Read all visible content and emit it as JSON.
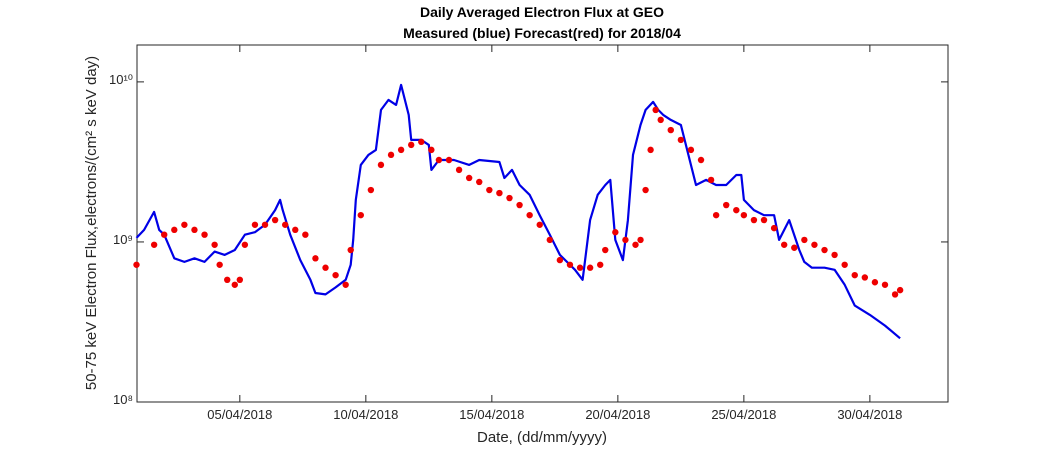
{
  "chart_data": {
    "type": "line",
    "title": "Daily Averaged Electron Flux at GEO",
    "subtitle": "Measured (blue) Forecast(red) for 2018/04",
    "x_label": "Date, (dd/mm/yyyy)",
    "y_label": "50-75 keV Electron Flux,electrons/(cm² s keV day)",
    "log_y": true,
    "grid": false,
    "xlim": [
      0.92,
      33.1
    ],
    "xticks": [
      {
        "value": 5,
        "label": "05/04/2018"
      },
      {
        "value": 10,
        "label": "10/04/2018"
      },
      {
        "value": 15,
        "label": "15/04/2018"
      },
      {
        "value": 20,
        "label": "20/04/2018"
      },
      {
        "value": 25,
        "label": "25/04/2018"
      },
      {
        "value": 30,
        "label": "30/04/2018"
      }
    ],
    "ylim": [
      100000000,
      17000000000
    ],
    "yticks": [
      {
        "value": 100000000,
        "label": "10⁸"
      },
      {
        "value": 1000000000,
        "label": "10⁹"
      },
      {
        "value": 10000000000,
        "label": "10¹⁰"
      }
    ],
    "series": [
      {
        "color": "#0000e6",
        "style": "line",
        "x": [
          0.9,
          1.2,
          1.6,
          1.8,
          2.0,
          2.4,
          2.8,
          3.2,
          3.6,
          4.0,
          4.4,
          4.8,
          5.2,
          5.6,
          6.0,
          6.4,
          6.6,
          6.7,
          7.0,
          7.4,
          7.8,
          8.0,
          8.4,
          8.8,
          9.2,
          9.4,
          9.5,
          9.6,
          9.8,
          10.1,
          10.4,
          10.6,
          10.9,
          11.2,
          11.4,
          11.7,
          11.8,
          12.2,
          12.5,
          12.6,
          12.9,
          13.5,
          14.1,
          14.5,
          15.3,
          15.5,
          15.8,
          16.1,
          16.5,
          16.9,
          17.3,
          17.7,
          18.3,
          18.6,
          18.7,
          18.9,
          19.2,
          19.5,
          19.7,
          19.9,
          20.2,
          20.4,
          20.6,
          20.9,
          21.1,
          21.4,
          21.6,
          21.8,
          22.1,
          22.5,
          22.8,
          23.1,
          23.5,
          23.9,
          24.3,
          24.7,
          24.9,
          25.0,
          25.4,
          25.8,
          26.2,
          26.4,
          26.8,
          27.2,
          27.4,
          27.7,
          28.2,
          28.6,
          29.0,
          29.4,
          30.0,
          30.6,
          31.2
        ],
        "values": [
          1060000000,
          1190000000,
          1540000000,
          1190000000,
          1110000000,
          790000000,
          750000000,
          790000000,
          750000000,
          870000000,
          830000000,
          890000000,
          1110000000,
          1150000000,
          1280000000,
          1580000000,
          1830000000,
          1580000000,
          1110000000,
          770000000,
          580000000,
          480000000,
          470000000,
          520000000,
          580000000,
          720000000,
          1030000000,
          1830000000,
          3030000000,
          3500000000,
          3760000000,
          6680000000,
          7720000000,
          7180000000,
          9570000000,
          6220000000,
          4340000000,
          4340000000,
          4040000000,
          2820000000,
          3250000000,
          3250000000,
          3030000000,
          3250000000,
          3160000000,
          2510000000,
          2820000000,
          2270000000,
          1970000000,
          1470000000,
          1110000000,
          830000000,
          670000000,
          580000000,
          770000000,
          1370000000,
          1970000000,
          2270000000,
          2440000000,
          1030000000,
          770000000,
          1370000000,
          3500000000,
          5380000000,
          6680000000,
          7500000000,
          6680000000,
          6220000000,
          5790000000,
          5380000000,
          3500000000,
          2270000000,
          2440000000,
          2270000000,
          2270000000,
          2620000000,
          2620000000,
          1830000000,
          1580000000,
          1470000000,
          1470000000,
          1030000000,
          1370000000,
          890000000,
          750000000,
          690000000,
          690000000,
          670000000,
          540000000,
          400000000,
          350000000,
          300000000,
          250000000
        ]
      },
      {
        "color": "#ee0000",
        "style": "dots",
        "x": [
          0.9,
          1.6,
          2.0,
          2.4,
          2.8,
          3.2,
          3.6,
          4.0,
          4.2,
          4.5,
          4.8,
          5.0,
          5.2,
          5.6,
          6.0,
          6.4,
          6.8,
          7.2,
          7.6,
          8.0,
          8.4,
          8.8,
          9.2,
          9.4,
          9.8,
          10.2,
          10.6,
          11.0,
          11.4,
          11.8,
          12.2,
          12.6,
          12.9,
          13.3,
          13.7,
          14.1,
          14.5,
          14.9,
          15.3,
          15.7,
          16.1,
          16.5,
          16.9,
          17.3,
          17.7,
          18.1,
          18.5,
          18.9,
          19.3,
          19.5,
          19.9,
          20.3,
          20.7,
          20.9,
          21.1,
          21.3,
          21.5,
          21.7,
          22.1,
          22.5,
          22.9,
          23.3,
          23.7,
          23.9,
          24.3,
          24.7,
          25.0,
          25.4,
          25.8,
          26.2,
          26.6,
          27.0,
          27.4,
          27.8,
          28.2,
          28.6,
          29.0,
          29.4,
          29.8,
          30.2,
          30.6,
          31.0,
          31.2
        ],
        "values": [
          720000000,
          960000000,
          1110000000,
          1190000000,
          1280000000,
          1190000000,
          1110000000,
          960000000,
          720000000,
          580000000,
          540000000,
          580000000,
          960000000,
          1280000000,
          1280000000,
          1370000000,
          1280000000,
          1190000000,
          1110000000,
          790000000,
          690000000,
          620000000,
          540000000,
          890000000,
          1470000000,
          2110000000,
          3030000000,
          3500000000,
          3760000000,
          4040000000,
          4220000000,
          3760000000,
          3250000000,
          3250000000,
          2820000000,
          2510000000,
          2370000000,
          2110000000,
          2020000000,
          1880000000,
          1700000000,
          1470000000,
          1280000000,
          1030000000,
          770000000,
          720000000,
          690000000,
          690000000,
          720000000,
          890000000,
          1150000000,
          1030000000,
          960000000,
          1030000000,
          2110000000,
          3760000000,
          6680000000,
          5790000000,
          5000000000,
          4340000000,
          3760000000,
          3250000000,
          2440000000,
          1470000000,
          1700000000,
          1580000000,
          1470000000,
          1370000000,
          1370000000,
          1220000000,
          960000000,
          920000000,
          1030000000,
          960000000,
          890000000,
          830000000,
          720000000,
          620000000,
          600000000,
          560000000,
          540000000,
          470000000,
          500000000
        ]
      }
    ]
  }
}
